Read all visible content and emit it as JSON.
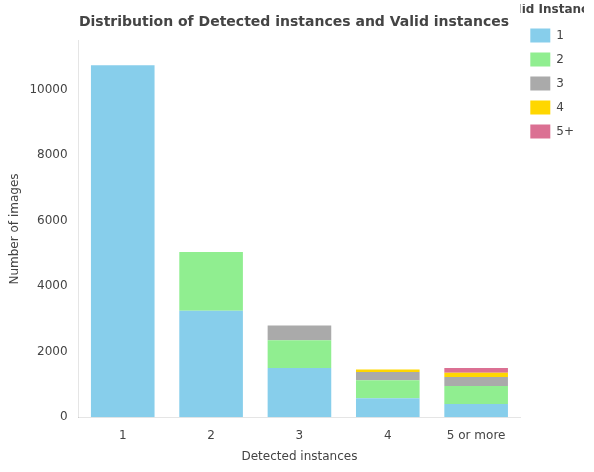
{
  "chart_data": {
    "type": "bar",
    "title": "Distribution of Detected instances and Valid instances",
    "xlabel": "Detected instances",
    "ylabel": "Number of images",
    "legend_title": "Valid Instances",
    "categories": [
      "1",
      "2",
      "3",
      "4",
      "5 or more"
    ],
    "series": [
      {
        "name": "1",
        "color": "#87CEEB",
        "values": [
          10750,
          3250,
          1500,
          580,
          400
        ]
      },
      {
        "name": "2",
        "color": "#90EE90",
        "values": [
          0,
          1800,
          850,
          550,
          550
        ]
      },
      {
        "name": "3",
        "color": "#AAAAAA",
        "values": [
          0,
          0,
          450,
          250,
          280
        ]
      },
      {
        "name": "4",
        "color": "#FFD700",
        "values": [
          0,
          0,
          0,
          80,
          130
        ]
      },
      {
        "name": "5+",
        "color": "#DB7093",
        "values": [
          0,
          0,
          0,
          0,
          140
        ]
      }
    ],
    "stacked": true,
    "ylim": [
      0,
      11500
    ],
    "yticks": [
      0,
      2000,
      4000,
      6000,
      8000,
      10000
    ],
    "grid": false,
    "legend": "upper right"
  }
}
